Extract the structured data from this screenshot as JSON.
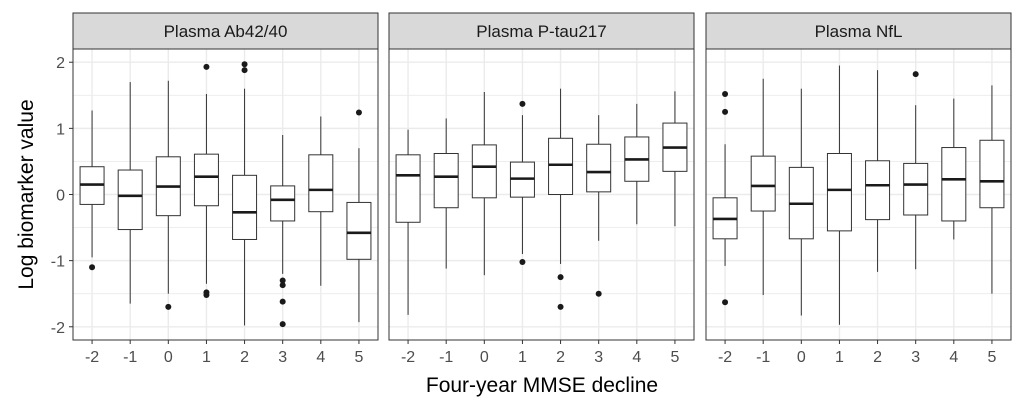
{
  "chart_data": {
    "type": "boxplot",
    "xlabel": "Four-year MMSE decline",
    "ylabel": "Log biomarker value",
    "categories": [
      "-2",
      "-1",
      "0",
      "1",
      "2",
      "3",
      "4",
      "5"
    ],
    "yticks": [
      "-2",
      "-1",
      "0",
      "1",
      "2"
    ],
    "ylim": [
      -2.2,
      2.2
    ],
    "grid": true,
    "facet_colors": {
      "strip_fill": "#d9d9d9",
      "panel_border": "#333333",
      "grid": "#ebebeb",
      "box_line": "#333333"
    },
    "panels": [
      {
        "title": "Plasma Ab42/40",
        "boxes": [
          {
            "category": "-2",
            "whisker_low": -0.95,
            "q1": -0.15,
            "median": 0.15,
            "q3": 0.42,
            "whisker_high": 1.27,
            "outliers": [
              -1.1
            ]
          },
          {
            "category": "-1",
            "whisker_low": -1.65,
            "q1": -0.53,
            "median": -0.02,
            "q3": 0.37,
            "whisker_high": 1.7,
            "outliers": []
          },
          {
            "category": "0",
            "whisker_low": -1.5,
            "q1": -0.32,
            "median": 0.12,
            "q3": 0.57,
            "whisker_high": 1.72,
            "outliers": [
              -1.7
            ]
          },
          {
            "category": "1",
            "whisker_low": -1.35,
            "q1": -0.17,
            "median": 0.27,
            "q3": 0.61,
            "whisker_high": 1.52,
            "outliers": [
              1.93,
              -1.48,
              -1.52
            ]
          },
          {
            "category": "2",
            "whisker_low": -1.98,
            "q1": -0.68,
            "median": -0.27,
            "q3": 0.29,
            "whisker_high": 1.6,
            "outliers": [
              1.97,
              1.88
            ]
          },
          {
            "category": "3",
            "whisker_low": -1.2,
            "q1": -0.4,
            "median": -0.08,
            "q3": 0.13,
            "whisker_high": 0.9,
            "outliers": [
              -1.3,
              -1.37,
              -1.62,
              -1.96
            ]
          },
          {
            "category": "4",
            "whisker_low": -1.38,
            "q1": -0.26,
            "median": 0.07,
            "q3": 0.6,
            "whisker_high": 1.18,
            "outliers": []
          },
          {
            "category": "5",
            "whisker_low": -1.93,
            "q1": -0.98,
            "median": -0.58,
            "q3": -0.12,
            "whisker_high": 0.7,
            "outliers": [
              1.24
            ]
          }
        ]
      },
      {
        "title": "Plasma P-tau217",
        "boxes": [
          {
            "category": "-2",
            "whisker_low": -1.82,
            "q1": -0.42,
            "median": 0.29,
            "q3": 0.6,
            "whisker_high": 0.98,
            "outliers": []
          },
          {
            "category": "-1",
            "whisker_low": -1.12,
            "q1": -0.2,
            "median": 0.27,
            "q3": 0.62,
            "whisker_high": 1.15,
            "outliers": []
          },
          {
            "category": "0",
            "whisker_low": -1.22,
            "q1": -0.05,
            "median": 0.42,
            "q3": 0.75,
            "whisker_high": 1.55,
            "outliers": []
          },
          {
            "category": "1",
            "whisker_low": -0.9,
            "q1": -0.04,
            "median": 0.24,
            "q3": 0.49,
            "whisker_high": 1.2,
            "outliers": [
              1.37,
              -1.02
            ]
          },
          {
            "category": "2",
            "whisker_low": -1.05,
            "q1": 0.0,
            "median": 0.45,
            "q3": 0.85,
            "whisker_high": 1.6,
            "outliers": [
              -1.25,
              -1.7
            ]
          },
          {
            "category": "3",
            "whisker_low": -0.7,
            "q1": 0.04,
            "median": 0.34,
            "q3": 0.76,
            "whisker_high": 1.2,
            "outliers": [
              -1.5
            ]
          },
          {
            "category": "4",
            "whisker_low": -0.45,
            "q1": 0.2,
            "median": 0.53,
            "q3": 0.87,
            "whisker_high": 1.37,
            "outliers": []
          },
          {
            "category": "5",
            "whisker_low": -0.48,
            "q1": 0.35,
            "median": 0.71,
            "q3": 1.08,
            "whisker_high": 1.56,
            "outliers": []
          }
        ]
      },
      {
        "title": "Plasma NfL",
        "boxes": [
          {
            "category": "-2",
            "whisker_low": -1.08,
            "q1": -0.67,
            "median": -0.37,
            "q3": -0.05,
            "whisker_high": 0.76,
            "outliers": [
              1.52,
              1.25,
              -1.63
            ]
          },
          {
            "category": "-1",
            "whisker_low": -1.52,
            "q1": -0.25,
            "median": 0.13,
            "q3": 0.58,
            "whisker_high": 1.75,
            "outliers": []
          },
          {
            "category": "0",
            "whisker_low": -1.83,
            "q1": -0.67,
            "median": -0.14,
            "q3": 0.41,
            "whisker_high": 1.6,
            "outliers": []
          },
          {
            "category": "1",
            "whisker_low": -1.97,
            "q1": -0.55,
            "median": 0.07,
            "q3": 0.62,
            "whisker_high": 1.95,
            "outliers": []
          },
          {
            "category": "2",
            "whisker_low": -1.17,
            "q1": -0.38,
            "median": 0.14,
            "q3": 0.51,
            "whisker_high": 1.88,
            "outliers": []
          },
          {
            "category": "3",
            "whisker_low": -1.13,
            "q1": -0.31,
            "median": 0.15,
            "q3": 0.47,
            "whisker_high": 1.35,
            "outliers": [
              1.82
            ]
          },
          {
            "category": "4",
            "whisker_low": -0.68,
            "q1": -0.4,
            "median": 0.23,
            "q3": 0.71,
            "whisker_high": 1.45,
            "outliers": []
          },
          {
            "category": "5",
            "whisker_low": -1.5,
            "q1": -0.2,
            "median": 0.2,
            "q3": 0.82,
            "whisker_high": 1.65,
            "outliers": []
          }
        ]
      }
    ]
  }
}
